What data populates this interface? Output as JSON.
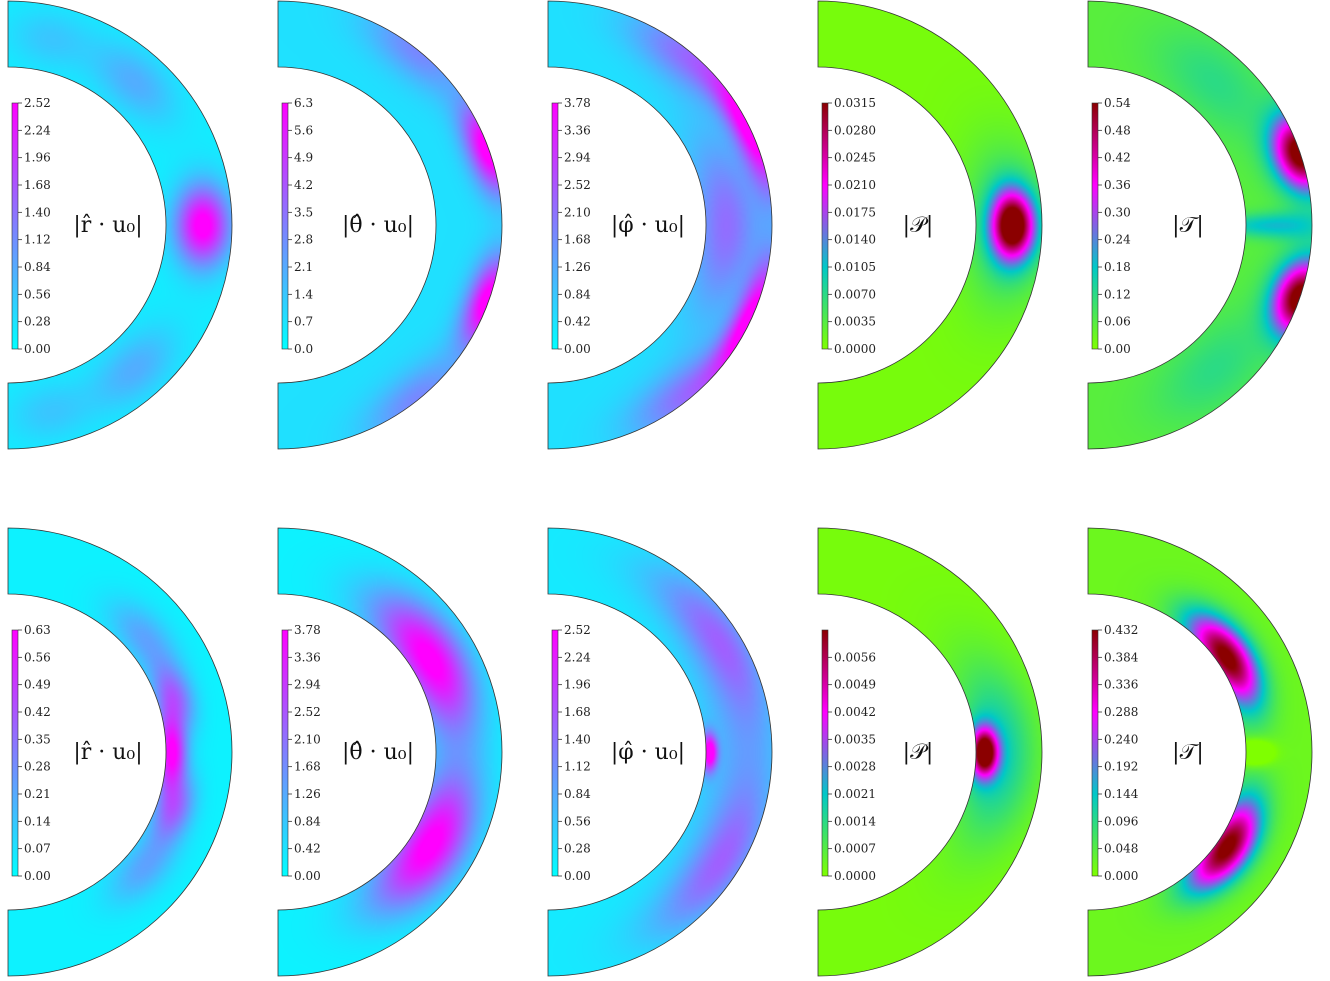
{
  "colormaps": {
    "cool_magenta": [
      "#00ffff",
      "#8080ff",
      "#ff00ff"
    ],
    "green_teal_magenta_red": [
      "#7fff00",
      "#00c8c8",
      "#ff00ff",
      "#8b0000"
    ]
  },
  "panels": [
    {
      "row": 0,
      "label": "|r̂ · u₀|",
      "cmap": "cool_magenta",
      "ticks": [
        "0.00",
        "0.28",
        "0.56",
        "0.84",
        "1.12",
        "1.40",
        "1.68",
        "1.96",
        "2.24",
        "2.52"
      ],
      "field": [
        {
          "th": 0,
          "r": 0.55,
          "st": 0.14,
          "sr": 0.28,
          "v": 1.0
        },
        {
          "th": 0.85,
          "r": 0.5,
          "st": 0.18,
          "sr": 0.3,
          "v": 0.25
        },
        {
          "th": -0.85,
          "r": 0.5,
          "st": 0.18,
          "sr": 0.3,
          "v": 0.25
        },
        {
          "th": 1.35,
          "r": 0.5,
          "st": 0.15,
          "sr": 0.3,
          "v": 0.15
        },
        {
          "th": -1.35,
          "r": 0.5,
          "st": 0.15,
          "sr": 0.3,
          "v": 0.15
        }
      ],
      "base": 0.07
    },
    {
      "row": 0,
      "label": "|θ̂ · u₀|",
      "cmap": "cool_magenta",
      "ticks": [
        "0.0",
        "0.7",
        "1.4",
        "2.1",
        "2.8",
        "3.5",
        "4.2",
        "4.9",
        "5.6",
        "6.3"
      ],
      "field": [
        {
          "th": 0.35,
          "r": 1.0,
          "st": 0.14,
          "sr": 0.22,
          "v": 1.0
        },
        {
          "th": -0.35,
          "r": 1.0,
          "st": 0.14,
          "sr": 0.22,
          "v": 1.0
        },
        {
          "th": 0.9,
          "r": 1.0,
          "st": 0.18,
          "sr": 0.3,
          "v": 0.35
        },
        {
          "th": -0.9,
          "r": 1.0,
          "st": 0.18,
          "sr": 0.3,
          "v": 0.35
        }
      ],
      "base": 0.12
    },
    {
      "row": 0,
      "label": "|φ̂ · u₀|",
      "cmap": "cool_magenta",
      "ticks": [
        "0.00",
        "0.42",
        "0.84",
        "1.26",
        "1.68",
        "2.10",
        "2.52",
        "2.94",
        "3.36",
        "3.78"
      ],
      "field": [
        {
          "th": 0.45,
          "r": 1.0,
          "st": 0.2,
          "sr": 0.18,
          "v": 1.0
        },
        {
          "th": -0.45,
          "r": 1.0,
          "st": 0.2,
          "sr": 0.18,
          "v": 1.0
        },
        {
          "th": 0,
          "r": 0.3,
          "st": 0.35,
          "sr": 0.35,
          "v": 0.45
        },
        {
          "th": 0.9,
          "r": 0.9,
          "st": 0.2,
          "sr": 0.3,
          "v": 0.4
        },
        {
          "th": -0.9,
          "r": 0.9,
          "st": 0.2,
          "sr": 0.3,
          "v": 0.4
        }
      ],
      "base": 0.12
    },
    {
      "row": 0,
      "label": "|𝒫|",
      "cmap": "green_teal_magenta_red",
      "ticks": [
        "0.0000",
        "0.0035",
        "0.0070",
        "0.0105",
        "0.0140",
        "0.0175",
        "0.0210",
        "0.0245",
        "0.0280",
        "0.0315"
      ],
      "field": [
        {
          "th": 0,
          "r": 0.55,
          "st": 0.12,
          "sr": 0.22,
          "v": 1.0
        },
        {
          "th": 0,
          "r": 0.5,
          "st": 0.28,
          "sr": 0.45,
          "v": 0.25
        }
      ],
      "base": 0.02
    },
    {
      "row": 0,
      "label": "|𝒯|",
      "cmap": "green_teal_magenta_red",
      "ticks": [
        "0.00",
        "0.06",
        "0.12",
        "0.18",
        "0.24",
        "0.30",
        "0.36",
        "0.42",
        "0.48",
        "0.54"
      ],
      "field": [
        {
          "th": 0.33,
          "r": 1.0,
          "st": 0.12,
          "sr": 0.28,
          "v": 1.0
        },
        {
          "th": -0.33,
          "r": 1.0,
          "st": 0.12,
          "sr": 0.28,
          "v": 1.0
        },
        {
          "th": 0,
          "r": 0.4,
          "st": 0.05,
          "sr": 0.6,
          "v": 0.25
        },
        {
          "th": 0.85,
          "r": 0.5,
          "st": 0.25,
          "sr": 0.4,
          "v": 0.12
        },
        {
          "th": -0.85,
          "r": 0.5,
          "st": 0.25,
          "sr": 0.4,
          "v": 0.12
        }
      ],
      "base": 0.1
    },
    {
      "row": 1,
      "label": "|r̂ · u₀|",
      "cmap": "cool_magenta",
      "ticks": [
        "0.00",
        "0.07",
        "0.14",
        "0.21",
        "0.28",
        "0.35",
        "0.42",
        "0.49",
        "0.56",
        "0.63"
      ],
      "field": [
        {
          "th": 0,
          "r": 0.08,
          "st": 0.16,
          "sr": 0.15,
          "v": 0.95
        },
        {
          "th": 0.32,
          "r": 0.25,
          "st": 0.14,
          "sr": 0.2,
          "v": 0.55
        },
        {
          "th": -0.32,
          "r": 0.25,
          "st": 0.14,
          "sr": 0.2,
          "v": 0.55
        },
        {
          "th": 0.7,
          "r": 0.3,
          "st": 0.18,
          "sr": 0.25,
          "v": 0.3
        },
        {
          "th": -0.7,
          "r": 0.3,
          "st": 0.18,
          "sr": 0.25,
          "v": 0.3
        }
      ],
      "base": 0.05
    },
    {
      "row": 1,
      "label": "|θ̂ · u₀|",
      "cmap": "cool_magenta",
      "ticks": [
        "0.00",
        "0.42",
        "0.84",
        "1.26",
        "1.68",
        "2.10",
        "2.52",
        "2.94",
        "3.36",
        "3.78"
      ],
      "field": [
        {
          "th": 0.55,
          "r": 0.3,
          "st": 0.3,
          "sr": 0.35,
          "v": 1.0
        },
        {
          "th": -0.55,
          "r": 0.3,
          "st": 0.3,
          "sr": 0.35,
          "v": 1.0
        }
      ],
      "base": 0.05
    },
    {
      "row": 1,
      "label": "|φ̂ · u₀|",
      "cmap": "cool_magenta",
      "ticks": [
        "0.00",
        "0.28",
        "0.56",
        "0.84",
        "1.12",
        "1.40",
        "1.68",
        "1.96",
        "2.24",
        "2.52"
      ],
      "field": [
        {
          "th": 0,
          "r": 0.05,
          "st": 0.08,
          "sr": 0.08,
          "v": 1.0
        },
        {
          "th": 0.6,
          "r": 0.7,
          "st": 0.3,
          "sr": 0.3,
          "v": 0.45
        },
        {
          "th": -0.6,
          "r": 0.7,
          "st": 0.3,
          "sr": 0.3,
          "v": 0.45
        },
        {
          "th": 0,
          "r": 0.5,
          "st": 0.5,
          "sr": 0.5,
          "v": 0.2
        }
      ],
      "base": 0.08
    },
    {
      "row": 1,
      "label": "|𝒫|",
      "cmap": "green_teal_magenta_red",
      "ticks": [
        "0.0000",
        "0.0007",
        "0.0014",
        "0.0021",
        "0.0028",
        "0.0035",
        "0.0042",
        "0.0049",
        "0.0056"
      ],
      "field": [
        {
          "th": 0,
          "r": 0.12,
          "st": 0.1,
          "sr": 0.14,
          "v": 1.0
        },
        {
          "th": 0,
          "r": 0.3,
          "st": 0.35,
          "sr": 0.4,
          "v": 0.3
        }
      ],
      "base": 0.02
    },
    {
      "row": 1,
      "label": "|𝒯|",
      "cmap": "green_teal_magenta_red",
      "ticks": [
        "0.000",
        "0.048",
        "0.096",
        "0.144",
        "0.192",
        "0.240",
        "0.288",
        "0.336",
        "0.384",
        "0.432"
      ],
      "field": [
        {
          "th": 0.6,
          "r": 0.15,
          "st": 0.22,
          "sr": 0.25,
          "v": 1.0
        },
        {
          "th": -0.6,
          "r": 0.15,
          "st": 0.22,
          "sr": 0.25,
          "v": 1.0
        },
        {
          "th": 0,
          "r": 0.1,
          "st": 0.05,
          "sr": 0.2,
          "v": -0.3
        }
      ],
      "base": 0.05
    }
  ]
}
